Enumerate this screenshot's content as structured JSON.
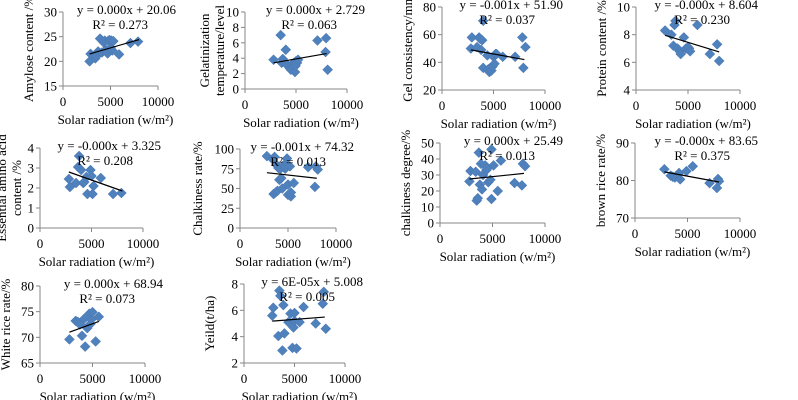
{
  "figure": {
    "colors": {
      "marker": "#4f81bd",
      "trendline": "#000000",
      "axis": "#878787"
    }
  },
  "chart_data": [
    {
      "type": "scatter",
      "title": "",
      "xlabel": "Solar radiation  (w/m²)",
      "ylabel": "Amylose content /%",
      "xlim": [
        0,
        10000
      ],
      "ylim": [
        15,
        30
      ],
      "xticks": [
        "0",
        "5000",
        "10000"
      ],
      "yticks": [
        "15",
        "20",
        "25",
        "30"
      ],
      "equation": "y = 0.000x + 20.06",
      "r2": "R² = 0.273",
      "trendline": {
        "x": [
          2800,
          8000
        ],
        "y": [
          21.5,
          24.4
        ]
      },
      "x": [
        2800,
        2900,
        3400,
        3500,
        3700,
        3900,
        4100,
        4300,
        4400,
        4500,
        4700,
        4800,
        4900,
        5000,
        5100,
        5200,
        5300,
        5900,
        7100,
        7900
      ],
      "y": [
        20.0,
        21.5,
        20.6,
        21.0,
        22.0,
        24.6,
        21.8,
        23.8,
        24.2,
        22.3,
        21.6,
        24.2,
        24.3,
        22.8,
        24.2,
        22.2,
        24.1,
        21.4,
        23.7,
        24.0
      ]
    },
    {
      "type": "scatter",
      "title": "",
      "xlabel": "Solar radiation  (w/m²)",
      "ylabel": "Gelatinization temperature/level",
      "xlim": [
        0,
        10000
      ],
      "ylim": [
        0,
        10
      ],
      "xticks": [
        "0",
        "5000",
        "10000"
      ],
      "yticks": [
        "0",
        "2",
        "4",
        "6",
        "8",
        "10"
      ],
      "equation": "y = 0.000x + 2.729",
      "r2": "R² = 0.063",
      "trendline": {
        "x": [
          2800,
          8000
        ],
        "y": [
          3.4,
          4.6
        ]
      },
      "x": [
        2800,
        3500,
        3600,
        3700,
        3800,
        4000,
        4100,
        4200,
        4400,
        4500,
        4600,
        4700,
        4800,
        4900,
        4950,
        5000,
        5100,
        5200,
        7100,
        7900,
        7950,
        8100
      ],
      "y": [
        3.8,
        7.0,
        3.4,
        3.9,
        3.6,
        5.1,
        3.2,
        3.0,
        2.7,
        2.5,
        3.2,
        2.8,
        3.4,
        2.2,
        3.0,
        3.6,
        3.4,
        3.8,
        6.3,
        4.8,
        6.6,
        2.5
      ]
    },
    {
      "type": "scatter",
      "title": "",
      "xlabel": "Solar radiation  (w/m²)",
      "ylabel": "Gel consistency/mm",
      "xlim": [
        0,
        10000
      ],
      "ylim": [
        20,
        80
      ],
      "xticks": [
        "0",
        "5000",
        "10000"
      ],
      "yticks": [
        "20",
        "40",
        "60",
        "80"
      ],
      "equation": "y = -0.001x + 51.90",
      "r2": "R² = 0.037",
      "trendline": {
        "x": [
          2800,
          8000
        ],
        "y": [
          49.0,
          42.0
        ]
      },
      "x": [
        2800,
        2900,
        3400,
        3600,
        3700,
        3800,
        3900,
        4000,
        4000,
        4400,
        4500,
        4600,
        4700,
        4800,
        4900,
        5000,
        5100,
        5200,
        5300,
        5900,
        7100,
        7800,
        7900,
        8100
      ],
      "y": [
        50,
        58,
        51,
        58,
        57,
        49,
        56,
        70,
        36,
        45,
        35,
        33,
        36,
        34,
        37,
        44,
        39,
        46,
        46,
        44,
        44,
        58,
        36,
        51
      ]
    },
    {
      "type": "scatter",
      "title": "",
      "xlabel": "Solar radiation  (w/m²)",
      "ylabel": "Protein content /%",
      "xlim": [
        0,
        10000
      ],
      "ylim": [
        4,
        10
      ],
      "xticks": [
        "0",
        "5000",
        "10000"
      ],
      "yticks": [
        "4",
        "6",
        "8",
        "10"
      ],
      "equation": "y = -0.000x + 8.604",
      "r2": "R² = 0.230",
      "trendline": {
        "x": [
          2800,
          8000
        ],
        "y": [
          7.95,
          6.75
        ]
      },
      "x": [
        2800,
        3400,
        3600,
        3700,
        3800,
        4000,
        4200,
        4300,
        4600,
        4800,
        5000,
        5100,
        5200,
        5900,
        7100,
        7800,
        8000
      ],
      "y": [
        8.3,
        8.0,
        7.2,
        8.7,
        9.0,
        7.0,
        6.8,
        6.6,
        7.8,
        7.0,
        7.1,
        7.0,
        6.8,
        8.7,
        6.6,
        7.3,
        6.1
      ]
    },
    {
      "type": "scatter",
      "title": "",
      "xlabel": "Solar radiation  (w/m²)",
      "ylabel": "Essential amino acid content /%",
      "xlim": [
        0,
        10000
      ],
      "ylim": [
        0,
        4
      ],
      "xticks": [
        "0",
        "5000",
        "10000"
      ],
      "yticks": [
        "0",
        "1",
        "2",
        "3",
        "4"
      ],
      "equation": "y = -0.000x + 3.325",
      "r2": "R² = 0.208",
      "trendline": {
        "x": [
          2800,
          8000
        ],
        "y": [
          2.8,
          1.85
        ]
      },
      "x": [
        2800,
        2900,
        3500,
        3700,
        3800,
        4000,
        4200,
        4300,
        4500,
        4600,
        4900,
        5000,
        5100,
        5200,
        5900,
        7100,
        7900
      ],
      "y": [
        2.45,
        2.05,
        2.25,
        3.05,
        3.6,
        2.9,
        2.25,
        2.3,
        2.55,
        1.7,
        2.9,
        2.6,
        1.7,
        2.1,
        2.5,
        1.7,
        1.75
      ]
    },
    {
      "type": "scatter",
      "title": "",
      "xlabel": "Solar radiation (w/m²)",
      "ylabel": "Chalkiness rate/%",
      "xlim": [
        0,
        10000
      ],
      "ylim": [
        0,
        100
      ],
      "xticks": [
        "0",
        "5000",
        "10000"
      ],
      "yticks": [
        "0",
        "25",
        "50",
        "75",
        "100"
      ],
      "equation": "y = -0.001x + 74.32",
      "r2": "R² = 0.013",
      "trendline": {
        "x": [
          2800,
          8000
        ],
        "y": [
          70.0,
          63.0
        ]
      },
      "x": [
        2800,
        3400,
        3500,
        3600,
        3700,
        3800,
        3900,
        4000,
        4100,
        4200,
        4300,
        4400,
        4600,
        4700,
        4800,
        4900,
        5000,
        5000,
        5200,
        5300,
        5300,
        5600,
        7100,
        7800,
        7900,
        8100
      ],
      "y": [
        91,
        87,
        43,
        90,
        45,
        80,
        47,
        76,
        61,
        75,
        63,
        50,
        80,
        75,
        77,
        88,
        55,
        42,
        78,
        40,
        45,
        57,
        77,
        52,
        78,
        74
      ]
    },
    {
      "type": "scatter",
      "title": "",
      "xlabel": "Solar radiation  (w/m²)",
      "ylabel": "chalkiness degree/%",
      "xlim": [
        0,
        10000
      ],
      "ylim": [
        0,
        50
      ],
      "xticks": [
        "0",
        "5000",
        "10000"
      ],
      "yticks": [
        "0",
        "10",
        "20",
        "30",
        "40",
        "50"
      ],
      "equation": "y = 0.000x + 25.49",
      "r2": "R² = 0.013",
      "trendline": {
        "x": [
          2800,
          8000
        ],
        "y": [
          27.5,
          31.0
        ]
      },
      "x": [
        2800,
        2900,
        3400,
        3500,
        3600,
        3700,
        3800,
        3900,
        4000,
        4100,
        4300,
        4400,
        4500,
        4600,
        4800,
        4900,
        4900,
        5100,
        5500,
        5800,
        7100,
        7800,
        7900,
        8100
      ],
      "y": [
        26,
        32.5,
        32,
        14,
        15.5,
        44,
        24,
        37,
        21,
        30,
        36,
        33,
        34,
        25.5,
        27,
        46,
        15,
        36,
        20,
        39,
        25,
        23.5,
        37,
        35.5
      ]
    },
    {
      "type": "scatter",
      "title": "",
      "xlabel": "Solar radiation  (w/m²)",
      "ylabel": "brown rice rate/%",
      "xlim": [
        0,
        10000
      ],
      "ylim": [
        70,
        90
      ],
      "xticks": [
        "0",
        "5000",
        "10000"
      ],
      "yticks": [
        "70",
        "80",
        "90"
      ],
      "equation": "y = -0.000x + 83.65",
      "r2": "R² = 0.375",
      "trendline": {
        "x": [
          2800,
          8000
        ],
        "y": [
          82.3,
          79.6
        ]
      },
      "x": [
        2800,
        3400,
        3600,
        3800,
        4200,
        4300,
        4900,
        5500,
        7100,
        7800,
        7900,
        8000
      ],
      "y": [
        83.0,
        81.3,
        81.0,
        80.8,
        82.0,
        80.3,
        82.5,
        83.8,
        79.3,
        78.0,
        80.4,
        79.8
      ]
    },
    {
      "type": "scatter",
      "title": "",
      "xlabel": "Solar radiation  (w/m²)",
      "ylabel": "White rice rate/%",
      "xlim": [
        0,
        10000
      ],
      "ylim": [
        65,
        80
      ],
      "xticks": [
        "0",
        "5000",
        "10000"
      ],
      "yticks": [
        "65",
        "70",
        "75",
        "80"
      ],
      "equation": "y = 0.000x + 68.94",
      "r2": "R² = 0.073",
      "trendline": {
        "x": [
          2800,
          5600
        ],
        "y": [
          71.0,
          73.1
        ]
      },
      "x": [
        2800,
        3400,
        3600,
        3800,
        4000,
        4200,
        4300,
        4500,
        4600,
        4700,
        4800,
        4900,
        5000,
        5300,
        5600
      ],
      "y": [
        69.6,
        73.2,
        73.0,
        72.5,
        70.3,
        73.6,
        68.2,
        71.8,
        72.2,
        74.6,
        72.6,
        73.5,
        74.9,
        69.2,
        74.0
      ]
    },
    {
      "type": "scatter",
      "title": "",
      "xlabel": "Solar radiation  (w/m²)",
      "ylabel": "Yeild(t/ha)",
      "xlim": [
        0,
        10000
      ],
      "ylim": [
        2,
        8
      ],
      "xticks": [
        "0",
        "5000",
        "10000"
      ],
      "yticks": [
        "2",
        "4",
        "6",
        "8"
      ],
      "equation": "y = 6E-05x + 5.008",
      "r2": "R² = 0.005",
      "trendline": {
        "x": [
          2800,
          8000
        ],
        "y": [
          5.18,
          5.49
        ]
      },
      "x": [
        2800,
        2900,
        3400,
        3500,
        3600,
        3800,
        3900,
        4000,
        4400,
        4600,
        4800,
        4900,
        5000,
        5000,
        5200,
        5500,
        5900,
        7100,
        7800,
        7900,
        8100
      ],
      "y": [
        5.6,
        6.2,
        4.05,
        7.5,
        7.1,
        2.95,
        6.4,
        4.25,
        5.1,
        5.75,
        3.15,
        4.7,
        5.2,
        5.8,
        3.1,
        5.1,
        6.25,
        5.0,
        6.5,
        7.4,
        4.6
      ]
    }
  ]
}
